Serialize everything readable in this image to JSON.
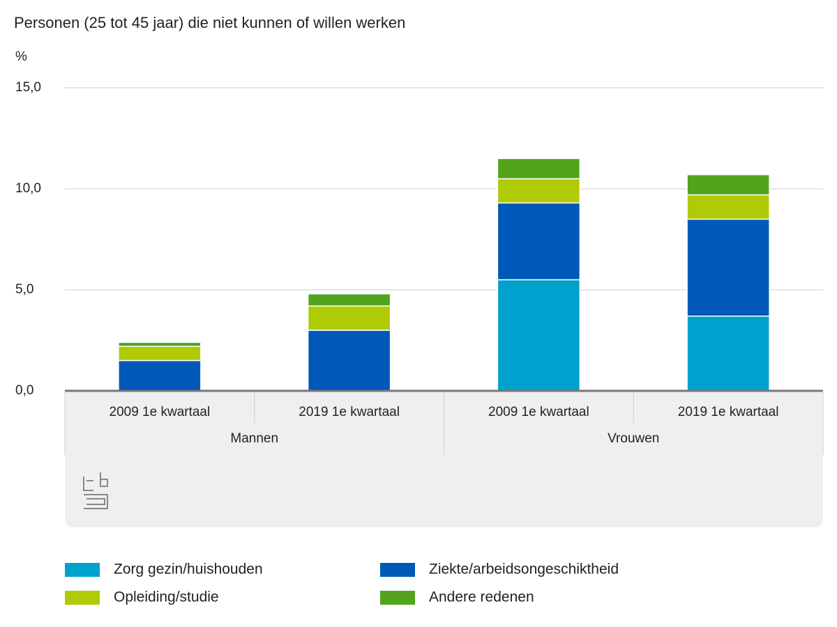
{
  "chart_data": {
    "type": "stacked_bar",
    "title": "Personen (25 tot 45 jaar) die niet kunnen of willen werken",
    "y_label": "%",
    "categories": [
      "2009 1e kwartaal",
      "2019 1e kwartaal",
      "2009 1e kwartaal",
      "2019 1e kwartaal"
    ],
    "groups": [
      {
        "label": "Mannen",
        "size": 2
      },
      {
        "label": "Vrouwen",
        "size": 2
      }
    ],
    "series": [
      {
        "name": "Zorg gezin/huishouden",
        "color": "#00a1cd",
        "values": [
          0,
          0,
          5.5,
          3.7
        ]
      },
      {
        "name": "Ziekte/arbeidsongeschiktheid",
        "color": "#0058b8",
        "values": [
          1.5,
          3.0,
          3.8,
          4.8
        ]
      },
      {
        "name": "Opleiding/studie",
        "color": "#afcb05",
        "values": [
          0.7,
          1.2,
          1.2,
          1.2
        ]
      },
      {
        "name": "Andere redenen",
        "color": "#53a31d",
        "values": [
          0.2,
          0.6,
          1.0,
          1.0
        ]
      }
    ],
    "ylim": [
      0,
      15
    ],
    "yticks": [
      {
        "value": 0,
        "label": "0,0"
      },
      {
        "value": 5,
        "label": "5,0"
      },
      {
        "value": 10,
        "label": "10,0"
      },
      {
        "value": 15,
        "label": "15,0"
      }
    ],
    "grid": true
  }
}
